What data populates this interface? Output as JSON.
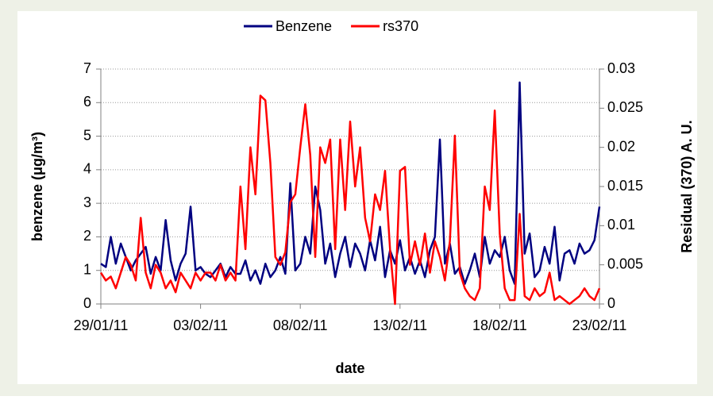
{
  "chart_data": {
    "type": "line",
    "xlabel": "date",
    "ylabel": "benzene (μg/m³)",
    "y2label": "Residual (370) A. U.",
    "x": [
      0,
      0.25,
      0.5,
      0.75,
      1,
      1.25,
      1.5,
      1.75,
      2,
      2.25,
      2.5,
      2.75,
      3,
      3.25,
      3.5,
      3.75,
      4,
      4.25,
      4.5,
      4.75,
      5,
      5.25,
      5.5,
      5.75,
      6,
      6.25,
      6.5,
      6.75,
      7,
      7.25,
      7.5,
      7.75,
      8,
      8.25,
      8.5,
      8.75,
      9,
      9.25,
      9.5,
      9.75,
      10,
      10.25,
      10.5,
      10.75,
      11,
      11.25,
      11.5,
      11.75,
      12,
      12.25,
      12.5,
      12.75,
      13,
      13.25,
      13.5,
      13.75,
      14,
      14.25,
      14.5,
      14.75,
      15,
      15.25,
      15.5,
      15.75,
      16,
      16.25,
      16.5,
      16.75,
      17,
      17.25,
      17.5,
      17.75,
      18,
      18.25,
      18.5,
      18.75,
      19,
      19.25,
      19.5,
      19.75,
      20,
      20.25,
      20.5,
      20.75,
      21,
      21.25,
      21.5,
      21.75,
      22,
      22.25,
      22.5,
      22.75,
      23,
      23.25,
      23.5,
      23.75,
      24,
      24.25,
      24.5,
      24.75,
      25
    ],
    "series": [
      {
        "name": "Benzene",
        "color": "#000080",
        "values": [
          1.2,
          1.1,
          2.0,
          1.2,
          1.8,
          1.4,
          1.0,
          1.3,
          1.5,
          1.7,
          0.9,
          1.4,
          1.0,
          2.5,
          1.3,
          0.7,
          1.2,
          1.5,
          2.9,
          1.0,
          1.1,
          0.9,
          0.8,
          1.0,
          1.2,
          0.8,
          1.1,
          0.9,
          0.9,
          1.3,
          0.7,
          1.0,
          0.6,
          1.2,
          0.8,
          1.0,
          1.4,
          0.9,
          3.6,
          1.0,
          1.2,
          2.0,
          1.5,
          3.5,
          2.8,
          1.2,
          1.8,
          0.8,
          1.5,
          2.0,
          1.1,
          1.8,
          1.5,
          1.0,
          1.9,
          1.3,
          2.3,
          0.8,
          1.6,
          1.2,
          1.9,
          1.0,
          1.4,
          0.9,
          1.3,
          0.8,
          1.6,
          2.0,
          4.9,
          1.2,
          1.8,
          0.9,
          1.1,
          0.6,
          1.0,
          1.5,
          0.8,
          2.0,
          1.2,
          1.6,
          1.4,
          2.0,
          1.0,
          0.6,
          6.6,
          1.5,
          2.1,
          0.8,
          1.0,
          1.7,
          1.2,
          2.3,
          0.7,
          1.5,
          1.6,
          1.2,
          1.8,
          1.5,
          1.6,
          1.9,
          2.9
        ]
      },
      {
        "name": "rs370",
        "color": "#ff0000",
        "axis": "y2",
        "values": [
          0.004,
          0.003,
          0.0035,
          0.002,
          0.004,
          0.006,
          0.005,
          0.003,
          0.011,
          0.004,
          0.002,
          0.005,
          0.004,
          0.002,
          0.003,
          0.0015,
          0.004,
          0.003,
          0.002,
          0.004,
          0.003,
          0.004,
          0.004,
          0.003,
          0.005,
          0.003,
          0.004,
          0.003,
          0.015,
          0.007,
          0.02,
          0.014,
          0.0266,
          0.026,
          0.018,
          0.006,
          0.005,
          0.0066,
          0.013,
          0.014,
          0.02,
          0.0255,
          0.019,
          0.006,
          0.02,
          0.018,
          0.021,
          0.007,
          0.021,
          0.012,
          0.0233,
          0.015,
          0.02,
          0.011,
          0.008,
          0.014,
          0.012,
          0.017,
          0.007,
          0,
          0.017,
          0.0175,
          0.005,
          0.008,
          0.005,
          0.009,
          0.004,
          0.008,
          0.006,
          0.003,
          0.008,
          0.0215,
          0.004,
          0.002,
          0.001,
          0.0005,
          0.002,
          0.015,
          0.012,
          0.0247,
          0.009,
          0.002,
          0.0005,
          0.0005,
          0.0115,
          0.001,
          0.0005,
          0.002,
          0.001,
          0.0015,
          0.004,
          0.0005,
          0.001,
          0.0005,
          0,
          0.0005,
          0.001,
          0.002,
          0.001,
          0.0005,
          0.002
        ]
      }
    ],
    "xlim": [
      0,
      25
    ],
    "xticks": [
      {
        "value": 0,
        "label": "29/01/11"
      },
      {
        "value": 5,
        "label": "03/02/11"
      },
      {
        "value": 10,
        "label": "08/02/11"
      },
      {
        "value": 15,
        "label": "13/02/11"
      },
      {
        "value": 20,
        "label": "18/02/11"
      },
      {
        "value": 25,
        "label": "23/02/11"
      }
    ],
    "ylim": [
      0,
      7
    ],
    "yticks": [
      0,
      1,
      2,
      3,
      4,
      5,
      6,
      7
    ],
    "y2lim": [
      0,
      0.03
    ],
    "y2ticks": [
      0,
      0.005,
      0.01,
      0.015,
      0.02,
      0.025,
      0.03
    ],
    "grid": true,
    "legend": "top"
  }
}
